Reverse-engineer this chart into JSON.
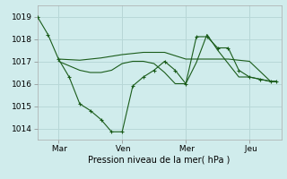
{
  "title": "Pression niveau de la mer( hPa )",
  "bg_color": "#d0ecec",
  "grid_color": "#b8d8d8",
  "line_color": "#1a5c1a",
  "ylim": [
    1013.5,
    1019.5
  ],
  "yticks": [
    1014,
    1015,
    1016,
    1017,
    1018,
    1019
  ],
  "day_labels": [
    " Mar",
    " Ven",
    " Mer",
    " Jeu"
  ],
  "day_positions": [
    1,
    4,
    7,
    10
  ],
  "xlim": [
    0,
    11.5
  ],
  "series1": {
    "x": [
      0,
      0.5,
      1.0,
      1.5,
      2.0,
      2.5,
      3.0,
      3.5,
      4.0,
      4.5,
      5.0,
      5.5,
      6.0,
      6.5,
      7.0,
      7.5,
      8.0,
      8.5,
      9.0,
      9.5,
      10.0,
      10.5,
      11.0,
      11.25
    ],
    "y": [
      1019.0,
      1018.2,
      1017.1,
      1016.3,
      1015.1,
      1014.8,
      1014.4,
      1013.85,
      1013.85,
      1015.9,
      1016.3,
      1016.6,
      1017.0,
      1016.6,
      1016.0,
      1018.1,
      1018.1,
      1017.6,
      1017.6,
      1016.6,
      1016.3,
      1016.2,
      1016.1,
      1016.1
    ]
  },
  "series2": {
    "x": [
      1.0,
      2.0,
      3.0,
      4.0,
      5.0,
      6.0,
      7.0,
      8.0,
      9.0,
      10.0,
      11.0,
      11.25
    ],
    "y": [
      1017.1,
      1017.05,
      1017.15,
      1017.3,
      1017.4,
      1017.4,
      1017.1,
      1017.1,
      1017.1,
      1017.0,
      1016.1,
      1016.1
    ]
  },
  "series3": {
    "x": [
      1.0,
      2.0,
      2.5,
      3.0,
      3.5,
      4.0,
      4.5,
      5.0,
      5.5,
      6.0,
      6.5,
      7.0,
      7.5,
      8.0,
      8.5,
      9.0,
      9.5,
      10.0,
      10.5,
      11.0,
      11.25
    ],
    "y": [
      1017.0,
      1016.6,
      1016.5,
      1016.5,
      1016.6,
      1016.9,
      1017.0,
      1017.0,
      1016.9,
      1016.5,
      1016.0,
      1016.0,
      1016.95,
      1018.2,
      1017.5,
      1016.9,
      1016.3,
      1016.3,
      1016.2,
      1016.1,
      1016.1
    ]
  }
}
